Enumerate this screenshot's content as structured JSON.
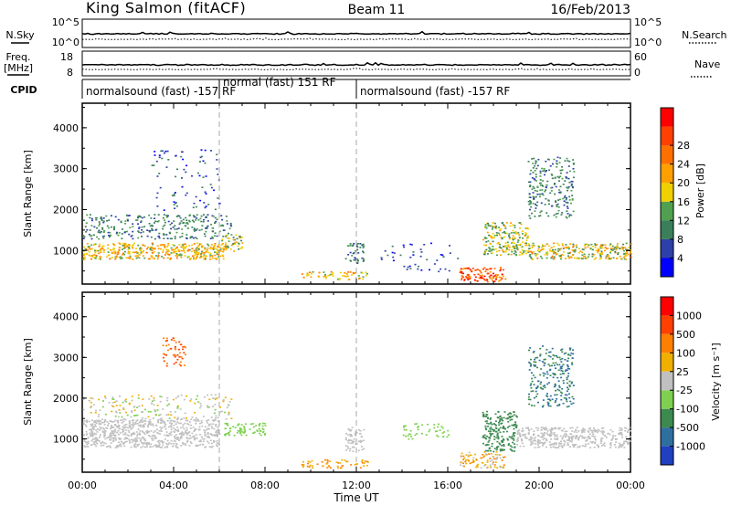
{
  "header": {
    "site": "King Salmon (fitACF)",
    "beam": "Beam 11",
    "date": "16/Feb/2013"
  },
  "params": {
    "nsky_label": "N.Sky",
    "nsearch_label": "N.Search",
    "freq_label": "Freq.",
    "freq_unit": "[MHz]",
    "nave_label": "Nave",
    "cpid_label": "CPID",
    "noise_ticks": [
      "10^5",
      "10^0"
    ],
    "freq_ticks": [
      "18",
      "8"
    ],
    "nave_ticks": [
      "60",
      "0"
    ],
    "modes": [
      {
        "label": "normalsound (fast) -157 RF",
        "start_h": 0,
        "end_h": 6
      },
      {
        "label": "normal (fast) 151 RF",
        "start_h": 6,
        "end_h": 12
      },
      {
        "label": "normalsound (fast) -157 RF",
        "start_h": 12,
        "end_h": 24
      }
    ]
  },
  "chart_data": [
    {
      "type": "heatmap",
      "title": "",
      "xlabel": "Time UT",
      "ylabel": "Slant Range [km]",
      "xlim": [
        0,
        24
      ],
      "ylim": [
        180,
        4600
      ],
      "xticks": [
        "00:00",
        "04:00",
        "08:00",
        "12:00",
        "16:00",
        "20:00",
        "00:00"
      ],
      "yticks": [
        "1000",
        "2000",
        "3000",
        "4000"
      ],
      "colorbar": {
        "label": "Power [dB]",
        "ticks": [
          "4",
          "8",
          "12",
          "16",
          "20",
          "24",
          "28"
        ],
        "colors": [
          "#0000ff",
          "#2f3fa9",
          "#3a7f5a",
          "#50a050",
          "#f0d000",
          "#ffa000",
          "#ff7000",
          "#ff4000",
          "#ff0000"
        ]
      },
      "scatter_regions": [
        {
          "t": [
            0.0,
            6.3
          ],
          "r": [
            800,
            1200
          ],
          "level": [
            3,
            6
          ],
          "density": 0.9
        },
        {
          "t": [
            0.0,
            6.5
          ],
          "r": [
            1300,
            1900
          ],
          "level": [
            1,
            3
          ],
          "density": 0.4
        },
        {
          "t": [
            3.0,
            6.0
          ],
          "r": [
            2000,
            3500
          ],
          "level": [
            0,
            2
          ],
          "density": 0.1
        },
        {
          "t": [
            6.0,
            7.0
          ],
          "r": [
            1000,
            1400
          ],
          "level": [
            2,
            5
          ],
          "density": 0.6
        },
        {
          "t": [
            9.5,
            12.5
          ],
          "r": [
            300,
            500
          ],
          "level": [
            3,
            6
          ],
          "density": 0.5
        },
        {
          "t": [
            11.5,
            12.3
          ],
          "r": [
            700,
            1200
          ],
          "level": [
            1,
            3
          ],
          "density": 0.6
        },
        {
          "t": [
            13.0,
            16.5
          ],
          "r": [
            500,
            1200
          ],
          "level": [
            0,
            2
          ],
          "density": 0.1
        },
        {
          "t": [
            16.5,
            18.5
          ],
          "r": [
            250,
            600
          ],
          "level": [
            5,
            8
          ],
          "density": 0.85
        },
        {
          "t": [
            17.5,
            19.5
          ],
          "r": [
            900,
            1700
          ],
          "level": [
            2,
            5
          ],
          "density": 0.7
        },
        {
          "t": [
            19.5,
            24.0
          ],
          "r": [
            800,
            1200
          ],
          "level": [
            2,
            6
          ],
          "density": 0.8
        },
        {
          "t": [
            19.5,
            21.5
          ],
          "r": [
            1800,
            3300
          ],
          "level": [
            1,
            3
          ],
          "density": 0.4
        }
      ]
    },
    {
      "type": "heatmap",
      "title": "",
      "xlabel": "Time UT",
      "ylabel": "Slant Range [km]",
      "xlim": [
        0,
        24
      ],
      "ylim": [
        180,
        4600
      ],
      "xticks": [
        "00:00",
        "04:00",
        "08:00",
        "12:00",
        "16:00",
        "20:00",
        "00:00"
      ],
      "yticks": [
        "1000",
        "2000",
        "3000",
        "4000"
      ],
      "colorbar": {
        "label": "Velocity [m s⁻¹]",
        "ticks": [
          "1000",
          "500",
          "100",
          "25",
          "-25",
          "-100",
          "-500",
          "-1000"
        ],
        "colors": [
          "#2040c0",
          "#2f6fa0",
          "#3c8a50",
          "#7fd050",
          "#c0c0c0",
          "#f0b000",
          "#ff8000",
          "#ff4000",
          "#ff0000"
        ]
      },
      "scatter_regions": [
        {
          "t": [
            0.0,
            6.0
          ],
          "r": [
            800,
            1500
          ],
          "level": [
            4,
            4
          ],
          "density": 0.9
        },
        {
          "t": [
            0.0,
            6.5
          ],
          "r": [
            1500,
            2100
          ],
          "level": [
            3,
            5
          ],
          "density": 0.25
        },
        {
          "t": [
            3.5,
            4.5
          ],
          "r": [
            2800,
            3500
          ],
          "level": [
            6,
            7
          ],
          "density": 0.4
        },
        {
          "t": [
            6.2,
            8.0
          ],
          "r": [
            1100,
            1400
          ],
          "level": [
            3,
            3
          ],
          "density": 0.75
        },
        {
          "t": [
            9.5,
            12.5
          ],
          "r": [
            300,
            500
          ],
          "level": [
            5,
            6
          ],
          "density": 0.5
        },
        {
          "t": [
            11.5,
            12.3
          ],
          "r": [
            700,
            1300
          ],
          "level": [
            4,
            4
          ],
          "density": 0.7
        },
        {
          "t": [
            14.0,
            16.0
          ],
          "r": [
            1000,
            1400
          ],
          "level": [
            3,
            3
          ],
          "density": 0.3
        },
        {
          "t": [
            16.5,
            18.5
          ],
          "r": [
            300,
            700
          ],
          "level": [
            4,
            6
          ],
          "density": 0.6
        },
        {
          "t": [
            17.5,
            19.0
          ],
          "r": [
            700,
            1700
          ],
          "level": [
            2,
            2
          ],
          "density": 0.7
        },
        {
          "t": [
            19.0,
            24.0
          ],
          "r": [
            800,
            1300
          ],
          "level": [
            4,
            4
          ],
          "density": 0.85
        },
        {
          "t": [
            19.5,
            21.5
          ],
          "r": [
            1800,
            3300
          ],
          "level": [
            1,
            2
          ],
          "density": 0.4
        }
      ]
    }
  ]
}
